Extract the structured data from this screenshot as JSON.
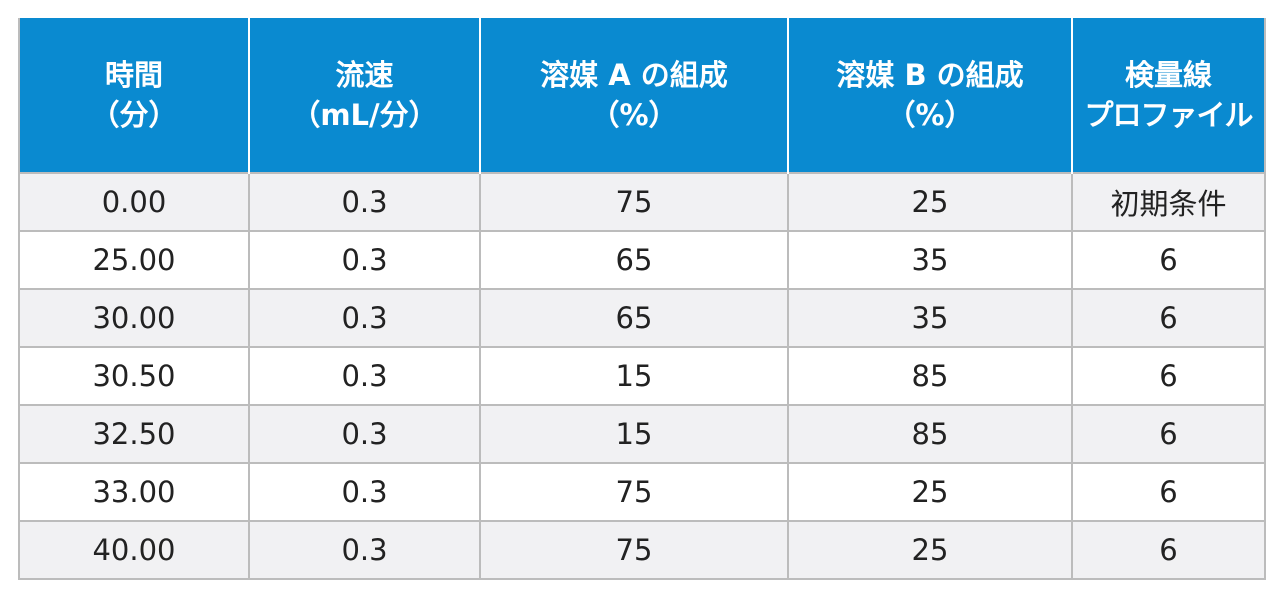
{
  "table": {
    "headers": [
      {
        "line1": "時間",
        "line2": "（分）"
      },
      {
        "line1": "流速",
        "line2": "（mL/分）"
      },
      {
        "line1": "溶媒 A の組成",
        "line2": "（%）"
      },
      {
        "line1": "溶媒 B の組成",
        "line2": "（%）"
      },
      {
        "line1": "検量線",
        "line2": "プロファイル"
      }
    ],
    "rows": [
      [
        "0.00",
        "0.3",
        "75",
        "25",
        "初期条件"
      ],
      [
        "25.00",
        "0.3",
        "65",
        "35",
        "6"
      ],
      [
        "30.00",
        "0.3",
        "65",
        "35",
        "6"
      ],
      [
        "30.50",
        "0.3",
        "15",
        "85",
        "6"
      ],
      [
        "32.50",
        "0.3",
        "15",
        "85",
        "6"
      ],
      [
        "33.00",
        "0.3",
        "75",
        "25",
        "6"
      ],
      [
        "40.00",
        "0.3",
        "75",
        "25",
        "6"
      ]
    ]
  },
  "colors": {
    "header_bg": "#0a8ad0",
    "header_text": "#ffffff",
    "row_alt_bg": "#f1f1f3",
    "border": "#bcbcbc"
  }
}
